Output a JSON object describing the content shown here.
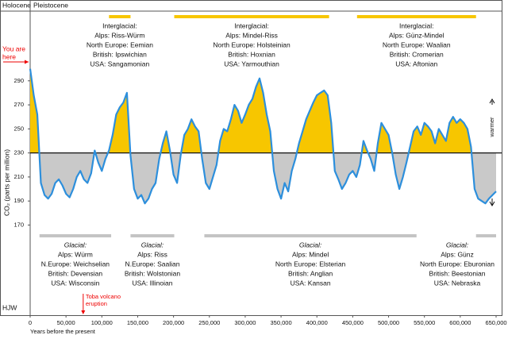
{
  "chart_data": {
    "type": "area-line",
    "top_labels": [
      "Holocene",
      "Pleistocene"
    ],
    "ylabel": "CO₂ (parts per million)",
    "xlabel": "Years before the present",
    "corner_label": "HJW",
    "warmer": "warmer",
    "colder": "colder",
    "you_are_here": [
      "You are",
      "here"
    ],
    "event": {
      "lines": [
        "Toba volcano",
        "eruption"
      ],
      "x": 74000
    },
    "baseline": 230,
    "xlim": [
      0,
      650000
    ],
    "ylim": [
      95,
      348
    ],
    "xticks": [
      0,
      {
        "value": 50000,
        "label": "50,000"
      },
      {
        "value": 100000,
        "label": "100,000"
      },
      {
        "value": 150000,
        "label": "150,000"
      },
      {
        "value": 200000,
        "label": "200,000"
      },
      {
        "value": 250000,
        "label": "250,000"
      },
      {
        "value": 300000,
        "label": "300,000"
      },
      {
        "value": 350000,
        "label": "350,000"
      },
      {
        "value": 400000,
        "label": "400,000"
      },
      {
        "value": 450000,
        "label": "450,000"
      },
      {
        "value": 500000,
        "label": "500,000"
      },
      {
        "value": 550000,
        "label": "550,000"
      },
      {
        "value": 600000,
        "label": "600,000"
      },
      {
        "value": 650000,
        "label": "650,000"
      }
    ],
    "yticks": [
      170,
      190,
      210,
      230,
      250,
      270,
      290
    ],
    "interglacials": [
      {
        "range": [
          110000,
          140000
        ],
        "lines": [
          "Interglacial:",
          "Alps: Riss-Würm",
          "North Europe: Eemian",
          "British: Ipswichian",
          "USA: Sangamonian"
        ]
      },
      {
        "range": [
          201000,
          417000
        ],
        "lines": [
          "Interglacial:",
          "Alps: Mindel-Riss",
          "North Europe: Holsteinian",
          "British: Hoxnian",
          "USA: Yarmouthian"
        ]
      },
      {
        "range": [
          456000,
          622000
        ],
        "lines": [
          "Interglacial:",
          "Alps: Günz-Mindel",
          "North Europe: Waalian",
          "British: Cromerian",
          "USA: Aftonian"
        ]
      }
    ],
    "glacials": [
      {
        "range": [
          13000,
          113000
        ],
        "lines": [
          "Glacial:",
          "Alps: Würm",
          "N.Europe: Weichselian",
          "British: Devensian",
          "USA: Wisconsin"
        ]
      },
      {
        "range": [
          140000,
          201000
        ],
        "lines": [
          "Glacial:",
          "Alps: Riss",
          "N.Europe: Saalian",
          "British: Wolstonian",
          "USA: Illinoian"
        ]
      },
      {
        "range": [
          243000,
          539000
        ],
        "lines": [
          "Glacial:",
          "Alps: Mindel",
          "North Europe: Elsterian",
          "British: Anglian",
          "USA: Kansan"
        ]
      },
      {
        "range": [
          622000,
          650000
        ],
        "lines": [
          "Glacial:",
          "Alps: Günz",
          "North Europe: Eburonian",
          "British: Beestonian",
          "USA: Nebraska"
        ]
      }
    ],
    "warm_color": "#f7c600",
    "cold_color": "#c9c9c9",
    "series": [
      {
        "color": "#2d8fdc",
        "x": [
          0,
          5000,
          10000,
          15000,
          20000,
          25000,
          30000,
          35000,
          40000,
          45000,
          50000,
          55000,
          60000,
          65000,
          70000,
          75000,
          80000,
          85000,
          90000,
          95000,
          100000,
          105000,
          110000,
          115000,
          120000,
          125000,
          130000,
          135000,
          140000,
          145000,
          150000,
          155000,
          160000,
          165000,
          170000,
          175000,
          180000,
          185000,
          190000,
          195000,
          200000,
          205000,
          210000,
          215000,
          220000,
          225000,
          230000,
          235000,
          240000,
          245000,
          250000,
          255000,
          260000,
          265000,
          270000,
          275000,
          280000,
          285000,
          290000,
          295000,
          300000,
          305000,
          310000,
          315000,
          320000,
          325000,
          330000,
          335000,
          340000,
          345000,
          350000,
          355000,
          360000,
          365000,
          370000,
          375000,
          380000,
          385000,
          390000,
          395000,
          400000,
          405000,
          410000,
          415000,
          420000,
          425000,
          430000,
          435000,
          440000,
          445000,
          450000,
          455000,
          460000,
          465000,
          470000,
          475000,
          480000,
          485000,
          490000,
          495000,
          500000,
          505000,
          510000,
          515000,
          520000,
          525000,
          530000,
          535000,
          540000,
          545000,
          550000,
          555000,
          560000,
          565000,
          570000,
          575000,
          580000,
          585000,
          590000,
          595000,
          600000,
          605000,
          610000,
          615000,
          620000,
          625000,
          630000,
          635000,
          640000,
          645000,
          650000
        ],
        "values": [
          300,
          278,
          262,
          205,
          195,
          192,
          196,
          205,
          208,
          203,
          196,
          193,
          200,
          210,
          215,
          208,
          205,
          213,
          232,
          222,
          215,
          225,
          232,
          245,
          262,
          268,
          272,
          280,
          228,
          200,
          192,
          195,
          188,
          192,
          200,
          205,
          225,
          238,
          248,
          232,
          212,
          205,
          228,
          245,
          250,
          258,
          252,
          248,
          225,
          205,
          200,
          210,
          220,
          240,
          250,
          248,
          258,
          270,
          265,
          255,
          262,
          270,
          275,
          285,
          292,
          280,
          262,
          248,
          215,
          200,
          192,
          205,
          198,
          215,
          225,
          238,
          248,
          258,
          265,
          272,
          278,
          280,
          282,
          278,
          255,
          215,
          208,
          200,
          205,
          212,
          215,
          210,
          220,
          240,
          232,
          225,
          215,
          238,
          255,
          250,
          245,
          230,
          212,
          200,
          210,
          222,
          235,
          248,
          252,
          245,
          255,
          252,
          248,
          238,
          250,
          245,
          240,
          255,
          260,
          255,
          258,
          255,
          250,
          235,
          200,
          192,
          190,
          188,
          192,
          195,
          198
        ]
      }
    ]
  }
}
